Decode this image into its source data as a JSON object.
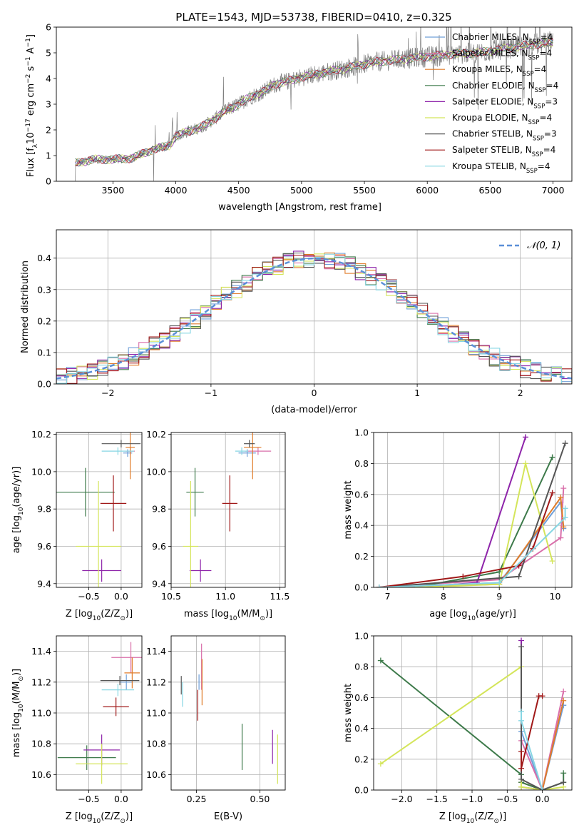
{
  "figure_title": "PLATE=1543, MJD=53738, FIBERID=0410, z=0.325",
  "colors": {
    "Chabrier MILES": "#6f9fd8",
    "Salpeter MILES": "#d96faa",
    "Kroupa MILES": "#e07b28",
    "Chabrier ELODIE": "#3d7a4a",
    "Salpeter ELODIE": "#8e24aa",
    "Kroupa ELODIE": "#d4e55a",
    "Chabrier STELIB": "#555555",
    "Salpeter STELIB": "#a01818",
    "Kroupa STELIB": "#86d6e3"
  },
  "chart_data": [
    {
      "id": "spectrum",
      "type": "line",
      "title": "PLATE=1543, MJD=53738, FIBERID=0410, z=0.325",
      "xlabel": "wavelength [Angstrom, rest frame]",
      "ylabel_parts": [
        "Flux [f",
        "λ",
        "10",
        "−17",
        " erg cm",
        "−2",
        " s",
        "−1",
        " A",
        "−1",
        "]"
      ],
      "xlim": [
        3050,
        7150
      ],
      "ylim": [
        0,
        6
      ],
      "xticks": [
        3500,
        4000,
        4500,
        5000,
        5500,
        6000,
        6500,
        7000
      ],
      "yticks": [
        0,
        1,
        2,
        3,
        4,
        5,
        6
      ],
      "grid": false,
      "legend_position": "right",
      "data_range": [
        3200,
        7000
      ],
      "continuum": {
        "x": [
          3200,
          3350,
          3500,
          3650,
          3800,
          3950,
          4000,
          4100,
          4200,
          4300,
          4400,
          4500,
          4600,
          4700,
          4800,
          4900,
          5000,
          5200,
          5400,
          5600,
          5800,
          6000,
          6200,
          6400,
          6600,
          6800,
          7000
        ],
        "y": [
          0.7,
          0.85,
          0.85,
          0.9,
          1.2,
          1.4,
          1.75,
          1.95,
          2.1,
          2.4,
          2.75,
          3.0,
          3.3,
          3.5,
          3.8,
          3.9,
          4.05,
          4.25,
          4.45,
          4.65,
          4.75,
          4.85,
          4.95,
          5.0,
          5.15,
          5.3,
          5.4
        ]
      },
      "series": [
        {
          "name": "Chabrier MILES",
          "nssp": "4"
        },
        {
          "name": "Salpeter MILES",
          "nssp": "4"
        },
        {
          "name": "Kroupa MILES",
          "nssp": "4"
        },
        {
          "name": "Chabrier ELODIE",
          "nssp": "4"
        },
        {
          "name": "Salpeter ELODIE",
          "nssp": "3"
        },
        {
          "name": "Kroupa ELODIE",
          "nssp": "4"
        },
        {
          "name": "Chabrier STELIB",
          "nssp": "3"
        },
        {
          "name": "Salpeter STELIB",
          "nssp": "4"
        },
        {
          "name": "Kroupa STELIB",
          "nssp": "4"
        }
      ]
    },
    {
      "id": "residuals",
      "type": "line",
      "xlabel": "(data-model)/error",
      "ylabel": "Normed distribution",
      "xlim": [
        -2.5,
        2.5
      ],
      "ylim": [
        0,
        0.49
      ],
      "xticks": [
        -2,
        -1,
        0,
        1,
        2
      ],
      "yticks": [
        0,
        0.1,
        0.2,
        0.3,
        0.4
      ],
      "grid": true,
      "legend_position": "top-right",
      "legend_label": "𝒩(0, 1)",
      "bin_width": 0.1,
      "gaussian": {
        "mean": 0,
        "sigma": 1
      }
    },
    {
      "id": "z-age",
      "type": "scatter",
      "xlabel_parts": [
        "Z [log",
        "10",
        "(Z/Z",
        "⊙",
        ")]"
      ],
      "ylabel_parts": [
        "age  [log",
        "10",
        "(age/yr)]"
      ],
      "xlim": [
        -1.0,
        0.32
      ],
      "ylim": [
        9.38,
        10.21
      ],
      "xticks": [
        -0.5,
        0.0
      ],
      "yticks": [
        9.4,
        9.6,
        9.8,
        10.0,
        10.2
      ],
      "grid": true,
      "points": [
        {
          "series": "Chabrier MILES",
          "x": 0.1,
          "xerr": 0.07,
          "y": 10.1,
          "yerr": 0.02
        },
        {
          "series": "Salpeter MILES",
          "x": 0.14,
          "xerr": 0.07,
          "y": 10.11,
          "yerr": 0.02
        },
        {
          "series": "Kroupa MILES",
          "x": 0.14,
          "xerr": 0.07,
          "y": 10.13,
          "yerr": 0.17
        },
        {
          "series": "Chabrier ELODIE",
          "x": -0.55,
          "xerr": 0.45,
          "y": 9.89,
          "yerr": 0.13
        },
        {
          "series": "Salpeter ELODIE",
          "x": -0.3,
          "xerr": 0.3,
          "y": 9.47,
          "yerr": 0.06
        },
        {
          "series": "Kroupa ELODIE",
          "x": -0.35,
          "xerr": 0.35,
          "y": 9.6,
          "yerr": 0.35
        },
        {
          "series": "Chabrier STELIB",
          "x": 0.0,
          "xerr": 0.3,
          "y": 10.15,
          "yerr": 0.02
        },
        {
          "series": "Salpeter STELIB",
          "x": -0.12,
          "xerr": 0.2,
          "y": 9.83,
          "yerr": 0.15
        },
        {
          "series": "Kroupa STELIB",
          "x": -0.05,
          "xerr": 0.25,
          "y": 10.11,
          "yerr": 0.02
        }
      ]
    },
    {
      "id": "mass-age",
      "type": "scatter",
      "xlabel_parts": [
        "mass [log",
        "10",
        "(M/M",
        "⊙",
        ")]"
      ],
      "ylabel_parts": [],
      "xlim": [
        10.5,
        11.55
      ],
      "ylim": [
        9.38,
        10.21
      ],
      "xticks": [
        10.5,
        11.0,
        11.5
      ],
      "yticks": [
        9.4,
        9.6,
        9.8,
        10.0,
        10.2
      ],
      "grid": true,
      "points": [
        {
          "series": "Chabrier MILES",
          "x": 11.2,
          "xerr": 0.08,
          "y": 10.1,
          "yerr": 0.02
        },
        {
          "series": "Salpeter MILES",
          "x": 11.3,
          "xerr": 0.12,
          "y": 10.11,
          "yerr": 0.02
        },
        {
          "series": "Kroupa MILES",
          "x": 11.25,
          "xerr": 0.08,
          "y": 10.13,
          "yerr": 0.17
        },
        {
          "series": "Chabrier ELODIE",
          "x": 10.72,
          "xerr": 0.08,
          "y": 9.89,
          "yerr": 0.13
        },
        {
          "series": "Salpeter ELODIE",
          "x": 10.77,
          "xerr": 0.1,
          "y": 9.47,
          "yerr": 0.06
        },
        {
          "series": "Kroupa ELODIE",
          "x": 10.68,
          "xerr": 0.07,
          "y": 9.6,
          "yerr": 0.35
        },
        {
          "series": "Chabrier STELIB",
          "x": 11.22,
          "xerr": 0.05,
          "y": 10.15,
          "yerr": 0.02
        },
        {
          "series": "Salpeter STELIB",
          "x": 11.04,
          "xerr": 0.07,
          "y": 9.83,
          "yerr": 0.15
        },
        {
          "series": "Kroupa STELIB",
          "x": 11.15,
          "xerr": 0.06,
          "y": 10.11,
          "yerr": 0.02
        }
      ]
    },
    {
      "id": "age-weight",
      "type": "line",
      "xlabel_parts": [
        "age  [log",
        "10",
        "(age/yr)]"
      ],
      "ylabel": "mass weight",
      "xlim": [
        6.75,
        10.3
      ],
      "ylim": [
        0,
        1.0
      ],
      "xticks": [
        7,
        8,
        9,
        10
      ],
      "yticks": [
        0.0,
        0.2,
        0.4,
        0.6,
        0.8,
        1.0
      ],
      "grid": true,
      "series": [
        {
          "name": "Chabrier MILES",
          "x": [
            6.85,
            9.0,
            10.1,
            10.15
          ],
          "y": [
            0.0,
            0.03,
            0.55,
            0.38
          ]
        },
        {
          "name": "Salpeter MILES",
          "x": [
            6.85,
            9.0,
            10.1,
            10.15
          ],
          "y": [
            0.0,
            0.05,
            0.32,
            0.64
          ]
        },
        {
          "name": "Kroupa MILES",
          "x": [
            6.85,
            9.0,
            10.1,
            10.15
          ],
          "y": [
            0.0,
            0.02,
            0.58,
            0.39
          ]
        },
        {
          "name": "Chabrier ELODIE",
          "x": [
            7.5,
            9.0,
            9.95,
            9.95
          ],
          "y": [
            0.0,
            0.1,
            0.84,
            0.84
          ]
        },
        {
          "name": "Salpeter ELODIE",
          "x": [
            7.5,
            8.6,
            9.47,
            9.47
          ],
          "y": [
            0.0,
            0.03,
            0.97,
            0.97
          ]
        },
        {
          "name": "Kroupa ELODIE",
          "x": [
            7.5,
            9.0,
            9.47,
            9.95
          ],
          "y": [
            0.0,
            0.02,
            0.8,
            0.17
          ]
        },
        {
          "name": "Chabrier STELIB",
          "x": [
            6.85,
            9.0,
            9.35,
            10.18
          ],
          "y": [
            0.0,
            0.06,
            0.07,
            0.93
          ]
        },
        {
          "name": "Salpeter STELIB",
          "x": [
            6.85,
            8.35,
            9.35,
            9.6,
            9.95
          ],
          "y": [
            0.0,
            0.07,
            0.14,
            0.25,
            0.61
          ]
        },
        {
          "name": "Kroupa STELIB",
          "x": [
            6.85,
            9.0,
            10.18,
            10.18
          ],
          "y": [
            0.0,
            0.03,
            0.45,
            0.51
          ]
        }
      ]
    },
    {
      "id": "z-mass",
      "type": "scatter",
      "xlabel_parts": [
        "Z [log",
        "10",
        "(Z/Z",
        "⊙",
        ")]"
      ],
      "ylabel_parts": [
        "mass [log",
        "10",
        "(M/M",
        "⊙",
        ")]"
      ],
      "xlim": [
        -1.0,
        0.32
      ],
      "ylim": [
        10.5,
        11.5
      ],
      "xticks": [
        -0.5,
        0.0
      ],
      "yticks": [
        10.6,
        10.8,
        11.0,
        11.2,
        11.4
      ],
      "grid": true,
      "points": [
        {
          "series": "Chabrier MILES",
          "x": 0.08,
          "xerr": 0.1,
          "y": 11.2,
          "yerr": 0.05
        },
        {
          "series": "Salpeter MILES",
          "x": 0.15,
          "xerr": 0.3,
          "y": 11.36,
          "yerr": 0.1
        },
        {
          "series": "Kroupa MILES",
          "x": 0.17,
          "xerr": 0.12,
          "y": 11.26,
          "yerr": 0.1
        },
        {
          "series": "Chabrier ELODIE",
          "x": -0.53,
          "xerr": 0.45,
          "y": 10.71,
          "yerr": 0.08
        },
        {
          "series": "Salpeter ELODIE",
          "x": -0.3,
          "xerr": 0.28,
          "y": 10.76,
          "yerr": 0.1
        },
        {
          "series": "Kroupa ELODIE",
          "x": -0.3,
          "xerr": 0.4,
          "y": 10.67,
          "yerr": 0.13
        },
        {
          "series": "Chabrier STELIB",
          "x": -0.02,
          "xerr": 0.3,
          "y": 11.21,
          "yerr": 0.03
        },
        {
          "series": "Salpeter STELIB",
          "x": -0.08,
          "xerr": 0.2,
          "y": 11.04,
          "yerr": 0.06
        },
        {
          "series": "Kroupa STELIB",
          "x": -0.05,
          "xerr": 0.25,
          "y": 11.15,
          "yerr": 0.04
        }
      ]
    },
    {
      "id": "ebv-mass",
      "type": "scatter",
      "xlabel": "E(B-V)",
      "ylabel_parts": [],
      "xlim": [
        0.15,
        0.6
      ],
      "ylim": [
        10.5,
        11.5
      ],
      "xticks": [
        0.25,
        0.5
      ],
      "xtick_labels": [
        "0.25",
        "0.50"
      ],
      "yticks": [
        10.6,
        10.8,
        11.0,
        11.2,
        11.4
      ],
      "grid": true,
      "points": [
        {
          "series": "Chabrier MILES",
          "x": 0.26,
          "xerr": 0,
          "y": 11.2,
          "yerr": 0.05
        },
        {
          "series": "Salpeter MILES",
          "x": 0.27,
          "xerr": 0,
          "y": 11.3,
          "yerr": 0.15
        },
        {
          "series": "Kroupa MILES",
          "x": 0.272,
          "xerr": 0,
          "y": 11.2,
          "yerr": 0.15
        },
        {
          "series": "Chabrier ELODIE",
          "x": 0.43,
          "xerr": 0,
          "y": 10.78,
          "yerr": 0.15
        },
        {
          "series": "Salpeter ELODIE",
          "x": 0.55,
          "xerr": 0,
          "y": 10.78,
          "yerr": 0.11
        },
        {
          "series": "Kroupa ELODIE",
          "x": 0.57,
          "xerr": 0,
          "y": 10.7,
          "yerr": 0.16
        },
        {
          "series": "Chabrier STELIB",
          "x": 0.19,
          "xerr": 0,
          "y": 11.18,
          "yerr": 0.06
        },
        {
          "series": "Salpeter STELIB",
          "x": 0.255,
          "xerr": 0,
          "y": 11.05,
          "yerr": 0.1
        },
        {
          "series": "Kroupa STELIB",
          "x": 0.195,
          "xerr": 0,
          "y": 11.12,
          "yerr": 0.08
        }
      ]
    },
    {
      "id": "z-weight",
      "type": "line",
      "xlabel_parts": [
        "Z [log",
        "10",
        "(Z/Z",
        "⊙",
        ")]"
      ],
      "ylabel": "mass weight",
      "xlim": [
        -2.4,
        0.42
      ],
      "ylim": [
        0,
        1.0
      ],
      "xticks": [
        -2.0,
        -1.5,
        -1.0,
        -0.5,
        0.0
      ],
      "xtick_labels": [
        "−2.0",
        "−1.5",
        "−1.0",
        "−0.5",
        "0.0"
      ],
      "yticks": [
        0.0,
        0.2,
        0.4,
        0.6,
        0.8,
        1.0
      ],
      "grid": true,
      "series": [
        {
          "name": "Chabrier MILES",
          "x": [
            -0.3,
            0.0,
            0.3,
            0.3
          ],
          "y": [
            0.38,
            0.0,
            0.55,
            0.55
          ]
        },
        {
          "name": "Salpeter MILES",
          "x": [
            -0.3,
            0.0,
            0.3
          ],
          "y": [
            0.32,
            0.0,
            0.64
          ]
        },
        {
          "name": "Kroupa MILES",
          "x": [
            -0.3,
            0.0,
            0.3
          ],
          "y": [
            0.05,
            0.0,
            0.58
          ]
        },
        {
          "name": "Chabrier ELODIE",
          "x": [
            -2.3,
            -0.3,
            -0.3,
            0.0,
            0.3,
            0.3
          ],
          "y": [
            0.84,
            0.1,
            0.05,
            0.0,
            0.05,
            0.11
          ]
        },
        {
          "name": "Salpeter ELODIE",
          "x": [
            -0.3,
            -0.3,
            0.0
          ],
          "y": [
            0.97,
            0.02,
            0.0
          ]
        },
        {
          "name": "Kroupa ELODIE",
          "x": [
            -2.3,
            -0.3,
            -0.3,
            0.0,
            0.3
          ],
          "y": [
            0.17,
            0.8,
            0.02,
            0.0,
            0.02
          ]
        },
        {
          "name": "Chabrier STELIB",
          "x": [
            -0.3,
            -0.3,
            0.0,
            0.3
          ],
          "y": [
            0.93,
            0.07,
            0.0,
            0.05
          ]
        },
        {
          "name": "Salpeter STELIB",
          "x": [
            -0.3,
            -0.3,
            -0.05,
            0.0
          ],
          "y": [
            0.25,
            0.14,
            0.61,
            0.61
          ]
        },
        {
          "name": "Kroupa STELIB",
          "x": [
            -0.3,
            -0.3,
            0.0
          ],
          "y": [
            0.51,
            0.45,
            0.0
          ]
        }
      ]
    }
  ]
}
